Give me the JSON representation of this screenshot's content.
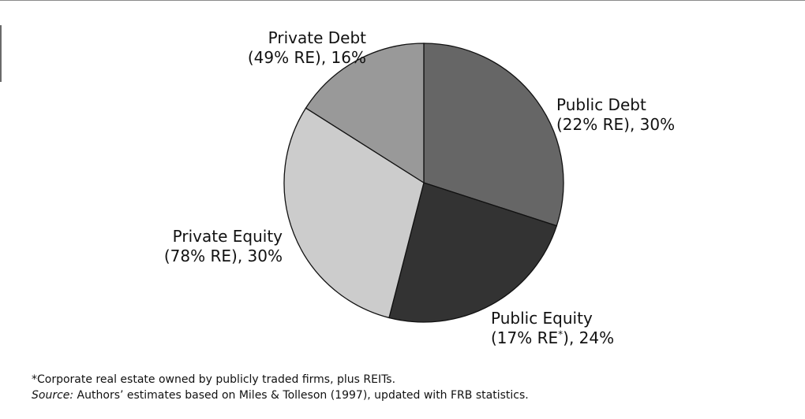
{
  "chart_data": {
    "type": "pie",
    "title": "",
    "slices": [
      {
        "line1": "Public Debt",
        "line2": "(22% RE), 30%",
        "value": 30,
        "color": "#666666"
      },
      {
        "line1": "Public Equity",
        "line2_before": "(17% RE",
        "line2_sup": "*",
        "line2_after": "), 24%",
        "value": 24,
        "color": "#333333"
      },
      {
        "line1": "Private Equity",
        "line2": "(78% RE), 30%",
        "value": 30,
        "color": "#cccccc"
      },
      {
        "line1": "Private Debt",
        "line2": "(49% RE), 16%",
        "value": 16,
        "color": "#999999"
      }
    ],
    "start": "12 o'clock",
    "direction": "clockwise"
  },
  "footnote": "*Corporate real estate owned by publicly traded firms, plus REITs.",
  "source_label": "Source:",
  "source_text": " Authors’ estimates based on Miles & Tolleson (1997), updated with FRB statistics."
}
